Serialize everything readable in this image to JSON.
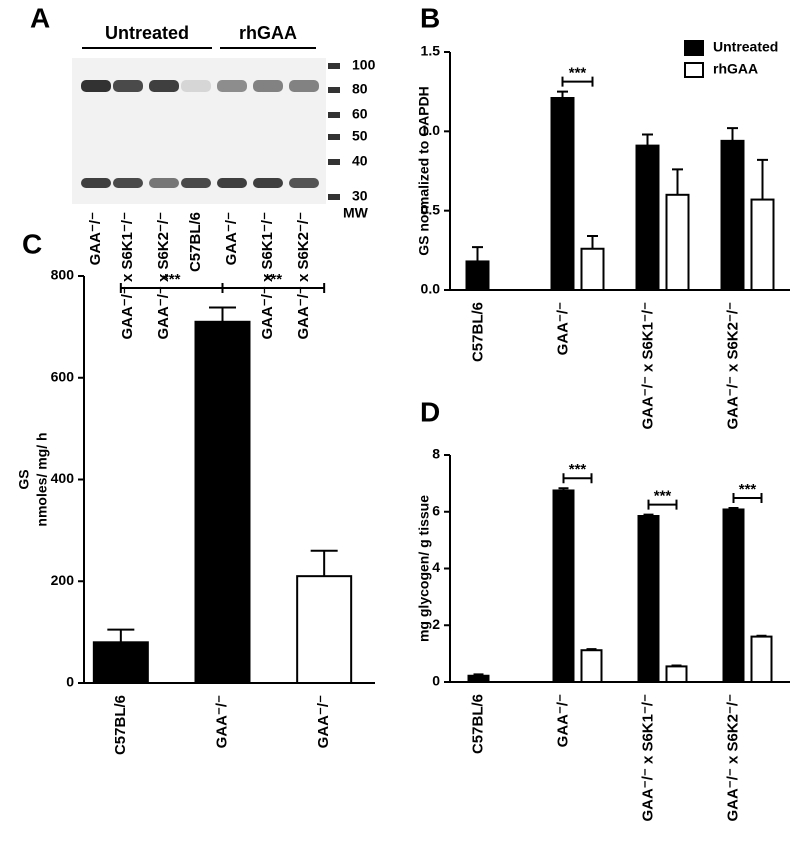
{
  "blot": {
    "panel_label": "A",
    "groups": [
      "Untreated",
      "rhGAA"
    ],
    "lanes": [
      "GAA⁻/⁻",
      "GAA⁻/⁻ x S6K1⁻/⁻",
      "GAA⁻/⁻ x S6K2⁻/⁻",
      "C57BL/6",
      "GAA⁻/⁻",
      "GAA⁻/⁻ x S6K1⁻/⁻",
      "GAA⁻/⁻ x S6K2⁻/⁻"
    ],
    "mw_markers": [
      100,
      80,
      60,
      50,
      40,
      30
    ],
    "mw_label": "MW"
  },
  "chart_data": [
    {
      "type": "bar",
      "panel_label": "B",
      "y_label": [
        "GS normalized to GAPDH"
      ],
      "categories": [
        "C57BL/6",
        "GAA⁻/⁻",
        "GAA⁻/⁻ x S6K1⁻/⁻",
        "GAA⁻/⁻ x S6K2⁻/⁻"
      ],
      "series": [
        {
          "name": "Untreated",
          "color": "#000000",
          "values": [
            0.18,
            1.21,
            0.91,
            0.94
          ],
          "errors": [
            0.09,
            0.04,
            0.07,
            0.08
          ]
        },
        {
          "name": "rhGAA",
          "color": "#ffffff",
          "values": [
            null,
            0.26,
            0.6,
            0.57
          ],
          "errors": [
            null,
            0.08,
            0.16,
            0.25
          ]
        }
      ],
      "ylim": [
        0,
        1.5
      ],
      "yticks": [
        {
          "value": 0,
          "label": "0.0"
        },
        0.5,
        {
          "value": 1,
          "label": "1.0"
        },
        1.5
      ],
      "annotations": [
        "***"
      ],
      "legend": "top-right"
    },
    {
      "type": "bar",
      "panel_label": "C",
      "y_label": [
        "GS",
        "nmoles/ mg/ h"
      ],
      "categories": [
        "C57BL/6",
        "GAA⁻/⁻",
        "GAA⁻/⁻"
      ],
      "series": [
        {
          "colors": [
            "#000000",
            "#000000",
            "#ffffff"
          ],
          "values": [
            80,
            710,
            210
          ],
          "errors": [
            25,
            28,
            50
          ]
        }
      ],
      "ylim": [
        0,
        800
      ],
      "yticks": [
        0,
        200,
        400,
        600,
        800
      ],
      "annotations": [
        "***",
        "***"
      ]
    },
    {
      "type": "bar",
      "panel_label": "D",
      "y_label": [
        "mg glycogen/ g tissue"
      ],
      "categories": [
        "C57BL/6",
        "GAA⁻/⁻",
        "GAA⁻/⁻ x S6K1⁻/⁻",
        "GAA⁻/⁻ x S6K2⁻/⁻"
      ],
      "series": [
        {
          "color": "#000000",
          "values": [
            0.22,
            6.75,
            5.85,
            6.08
          ],
          "errors": [
            0.05,
            0.08,
            0.05,
            0.05
          ]
        },
        {
          "color": "#ffffff",
          "values": [
            null,
            1.12,
            0.55,
            1.6
          ],
          "errors": [
            null,
            0.04,
            0.03,
            0.03
          ]
        }
      ],
      "ylim": [
        0,
        8
      ],
      "yticks": [
        0,
        2,
        4,
        6,
        8
      ],
      "annotations": [
        "***",
        "***",
        "***"
      ]
    }
  ]
}
